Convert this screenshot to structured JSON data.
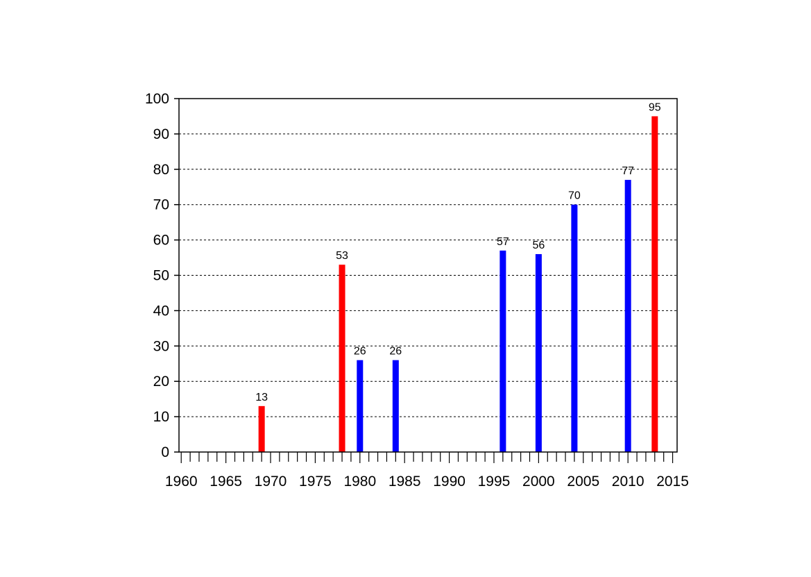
{
  "chart_data": {
    "type": "bar",
    "title": "",
    "xlabel": "",
    "ylabel": "",
    "xlim": [
      1959.75,
      2015.5
    ],
    "ylim": [
      0,
      100
    ],
    "grid": true,
    "x_ticks": [
      1960,
      1965,
      1970,
      1975,
      1980,
      1985,
      1990,
      1995,
      2000,
      2005,
      2010,
      2015
    ],
    "y_ticks": [
      0,
      10,
      20,
      30,
      40,
      50,
      60,
      70,
      80,
      90,
      100
    ],
    "bars": [
      {
        "x": 1969,
        "value": 13,
        "label": "13",
        "color": "#ff0000"
      },
      {
        "x": 1978,
        "value": 53,
        "label": "53",
        "color": "#ff0000"
      },
      {
        "x": 1980,
        "value": 26,
        "label": "26",
        "color": "#0000ff"
      },
      {
        "x": 1984,
        "value": 26,
        "label": "26",
        "color": "#0000ff"
      },
      {
        "x": 1996,
        "value": 57,
        "label": "57",
        "color": "#0000ff"
      },
      {
        "x": 2000,
        "value": 56,
        "label": "56",
        "color": "#0000ff"
      },
      {
        "x": 2004,
        "value": 70,
        "label": "70",
        "color": "#0000ff"
      },
      {
        "x": 2010,
        "value": 77,
        "label": "77",
        "color": "#0000ff"
      },
      {
        "x": 2013,
        "value": 95,
        "label": "95",
        "color": "#ff0000"
      }
    ]
  }
}
